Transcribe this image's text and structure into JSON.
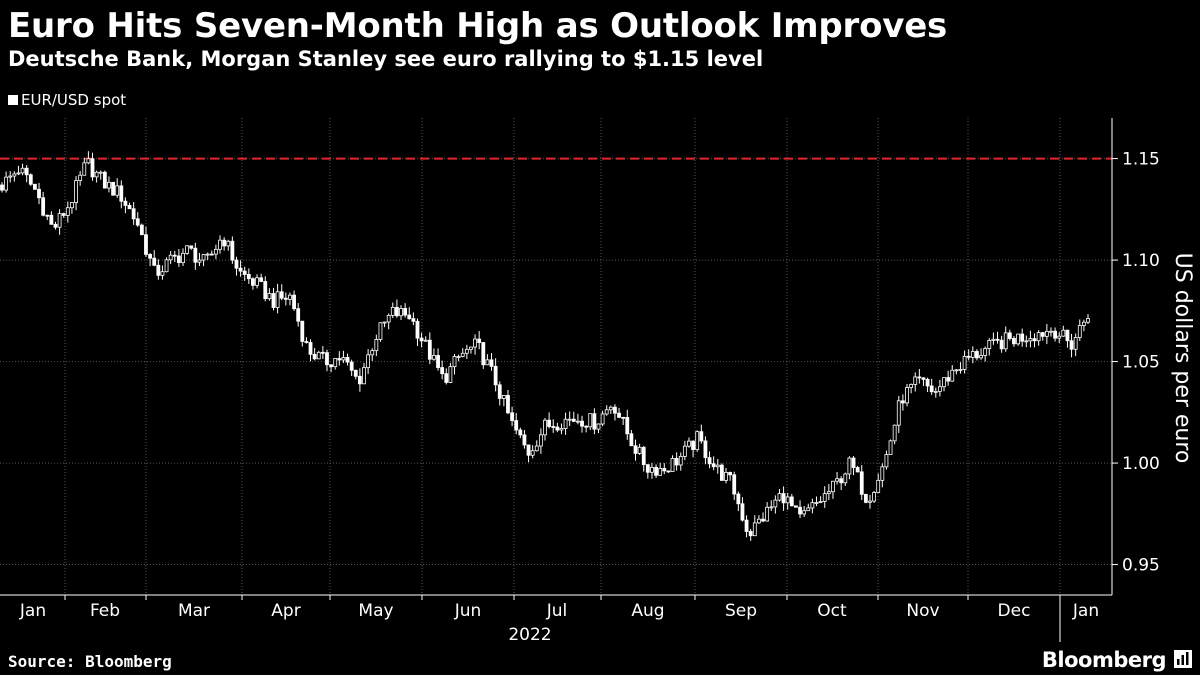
{
  "header": {
    "title": "Euro Hits Seven-Month High as Outlook Improves",
    "subtitle": "Deutsche Bank, Morgan Stanley see euro rallying to $1.15 level"
  },
  "footer": {
    "source": "Source: Bloomberg",
    "brand": "Bloomberg"
  },
  "colors": {
    "background": "#000000",
    "candle": "#ffffff",
    "reference_line": "#e8242a",
    "grid": "#555555"
  },
  "icons": [
    "bloomberg-chart-icon"
  ],
  "chart_data": {
    "type": "candlestick",
    "title": "Euro Hits Seven-Month High as Outlook Improves",
    "subtitle": "Deutsche Bank, Morgan Stanley see euro rallying to $1.15 level",
    "legend": [
      "EUR/USD spot"
    ],
    "legend_position": "top-left",
    "ylabel": "US dollars per euro",
    "xlabel": "2022",
    "ylim": [
      0.935,
      1.17
    ],
    "yticks": [
      0.95,
      1.0,
      1.05,
      1.1,
      1.15
    ],
    "ytick_labels": [
      "0.95",
      "1.00",
      "1.05",
      "1.10",
      "1.15"
    ],
    "y_axis_side": "right",
    "grid": "vertical dotted at month boundaries",
    "reference_line": {
      "y": 1.15,
      "style": "dashed",
      "color": "#e8242a"
    },
    "x_months": [
      "Jan",
      "Feb",
      "Mar",
      "Apr",
      "May",
      "Jun",
      "Jul",
      "Aug",
      "Sep",
      "Oct",
      "Nov",
      "Dec",
      "Jan"
    ],
    "x_year": "2022",
    "series": [
      {
        "name": "EUR/USD spot",
        "weekly_close_approx": [
          1.137,
          1.145,
          1.134,
          1.115,
          1.128,
          1.148,
          1.138,
          1.132,
          1.118,
          1.093,
          1.1,
          1.105,
          1.098,
          1.112,
          1.094,
          1.088,
          1.08,
          1.082,
          1.056,
          1.05,
          1.052,
          1.04,
          1.062,
          1.074,
          1.073,
          1.057,
          1.041,
          1.053,
          1.058,
          1.042,
          1.02,
          1.005,
          1.018,
          1.021,
          1.022,
          1.02,
          1.03,
          1.012,
          0.998,
          0.997,
          1.003,
          1.012,
          0.998,
          0.99,
          0.965,
          0.975,
          0.985,
          0.972,
          0.98,
          0.988,
          1.0,
          0.982,
          1.0,
          1.032,
          1.04,
          1.035,
          1.045,
          1.052,
          1.056,
          1.06,
          1.062,
          1.064,
          1.066,
          1.058,
          1.074
        ]
      }
    ]
  }
}
